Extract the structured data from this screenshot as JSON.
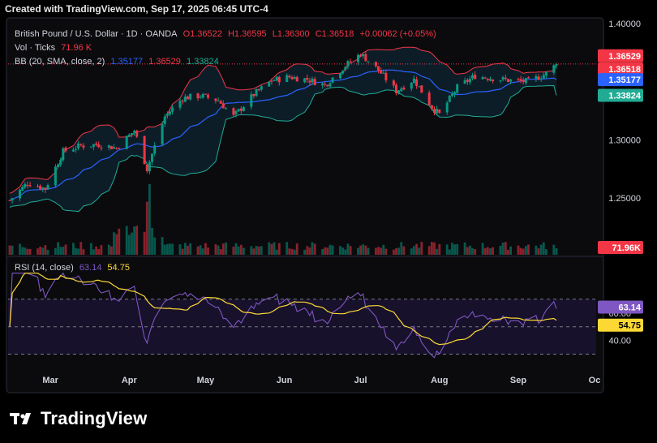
{
  "header": {
    "created_text": "Created with TradingView.com, Sep 17, 2025 06:45 UTC-4"
  },
  "legend": {
    "symbol": "British Pound / U.S. Dollar · 1D · OANDA",
    "open": "O1.36522",
    "high": "H1.36595",
    "low": "L1.36300",
    "close": "C1.36518",
    "change": "+0.00062 (+0.05%)",
    "vol_label": "Vol · Ticks",
    "vol_value": "71.96 K",
    "bb_label": "BB (20, SMA, close, 2)",
    "bb_basis": "1.35177",
    "bb_upper": "1.36529",
    "bb_lower": "1.33824",
    "rsi_label": "RSI (14, close)",
    "rsi_value": "63.14",
    "rsi_ma_value": "54.75"
  },
  "price_axis": {
    "ticks": [
      "1.40000",
      "1.30000",
      "1.25000"
    ],
    "tags": {
      "bb_upper": "1.36529",
      "last": "1.36518",
      "bb_basis": "1.35177",
      "bb_lower": "1.33824",
      "volume": "71.96K"
    }
  },
  "rsi_axis": {
    "ticks": [
      "60.00",
      "40.00"
    ],
    "tags": {
      "rsi": "63.14",
      "rsi_ma": "54.75"
    }
  },
  "time_axis": {
    "ticks": [
      "Mar",
      "Apr",
      "May",
      "Jun",
      "Jul",
      "Aug",
      "Sep",
      "Oc"
    ]
  },
  "footer": {
    "brand": "TradingView"
  },
  "colors": {
    "background": "#000000",
    "pane_bg": "#0b0b0e",
    "up": "#089981",
    "down": "#f23645",
    "bb_upper": "#f23645",
    "bb_basis": "#2962ff",
    "bb_lower": "#22ab94",
    "bb_fill": "#0f2a3a",
    "rsi": "#7e57c2",
    "rsi_ma": "#fdd835",
    "rsi_band": "#1a1330"
  },
  "chart_data": {
    "type": "candlestick",
    "symbol": "British Pound / U.S. Dollar",
    "timeframe": "1D",
    "x_labels": [
      "Mar",
      "Apr",
      "May",
      "Jun",
      "Jul",
      "Aug",
      "Sep",
      "Oc"
    ],
    "price_ylim": [
      1.2,
      1.4
    ],
    "close_path": [
      [
        "Feb-13",
        1.248
      ],
      [
        "Feb-20",
        1.263
      ],
      [
        "Feb-27",
        1.258
      ],
      [
        "Mar-06",
        1.29
      ],
      [
        "Mar-13",
        1.295
      ],
      [
        "Mar-20",
        1.296
      ],
      [
        "Mar-27",
        1.293
      ],
      [
        "Apr-03",
        1.308
      ],
      [
        "Apr-08",
        1.275
      ],
      [
        "Apr-15",
        1.32
      ],
      [
        "Apr-22",
        1.336
      ],
      [
        "Apr-29",
        1.338
      ],
      [
        "May-06",
        1.334
      ],
      [
        "May-12",
        1.32
      ],
      [
        "May-20",
        1.339
      ],
      [
        "May-27",
        1.351
      ],
      [
        "Jun-03",
        1.354
      ],
      [
        "Jun-10",
        1.352
      ],
      [
        "Jun-17",
        1.347
      ],
      [
        "Jun-24",
        1.362
      ],
      [
        "Jul-01",
        1.374
      ],
      [
        "Jul-08",
        1.36
      ],
      [
        "Jul-15",
        1.342
      ],
      [
        "Jul-22",
        1.352
      ],
      [
        "Jul-29",
        1.328
      ],
      [
        "Aug-01",
        1.322
      ],
      [
        "Aug-08",
        1.345
      ],
      [
        "Aug-15",
        1.355
      ],
      [
        "Aug-22",
        1.353
      ],
      [
        "Aug-29",
        1.351
      ],
      [
        "Sep-05",
        1.35
      ],
      [
        "Sep-12",
        1.357
      ],
      [
        "Sep-16",
        1.3652
      ]
    ],
    "bollinger": {
      "upper_last": 1.36529,
      "basis_last": 1.35177,
      "lower_last": 1.33824
    },
    "volume_last": "71.96K",
    "rsi": {
      "length": 14,
      "value_last": 63.14,
      "ma_last": 54.75,
      "ylim": [
        25,
        90
      ],
      "bands": [
        70,
        30
      ],
      "midline": 50
    },
    "grid": false
  }
}
